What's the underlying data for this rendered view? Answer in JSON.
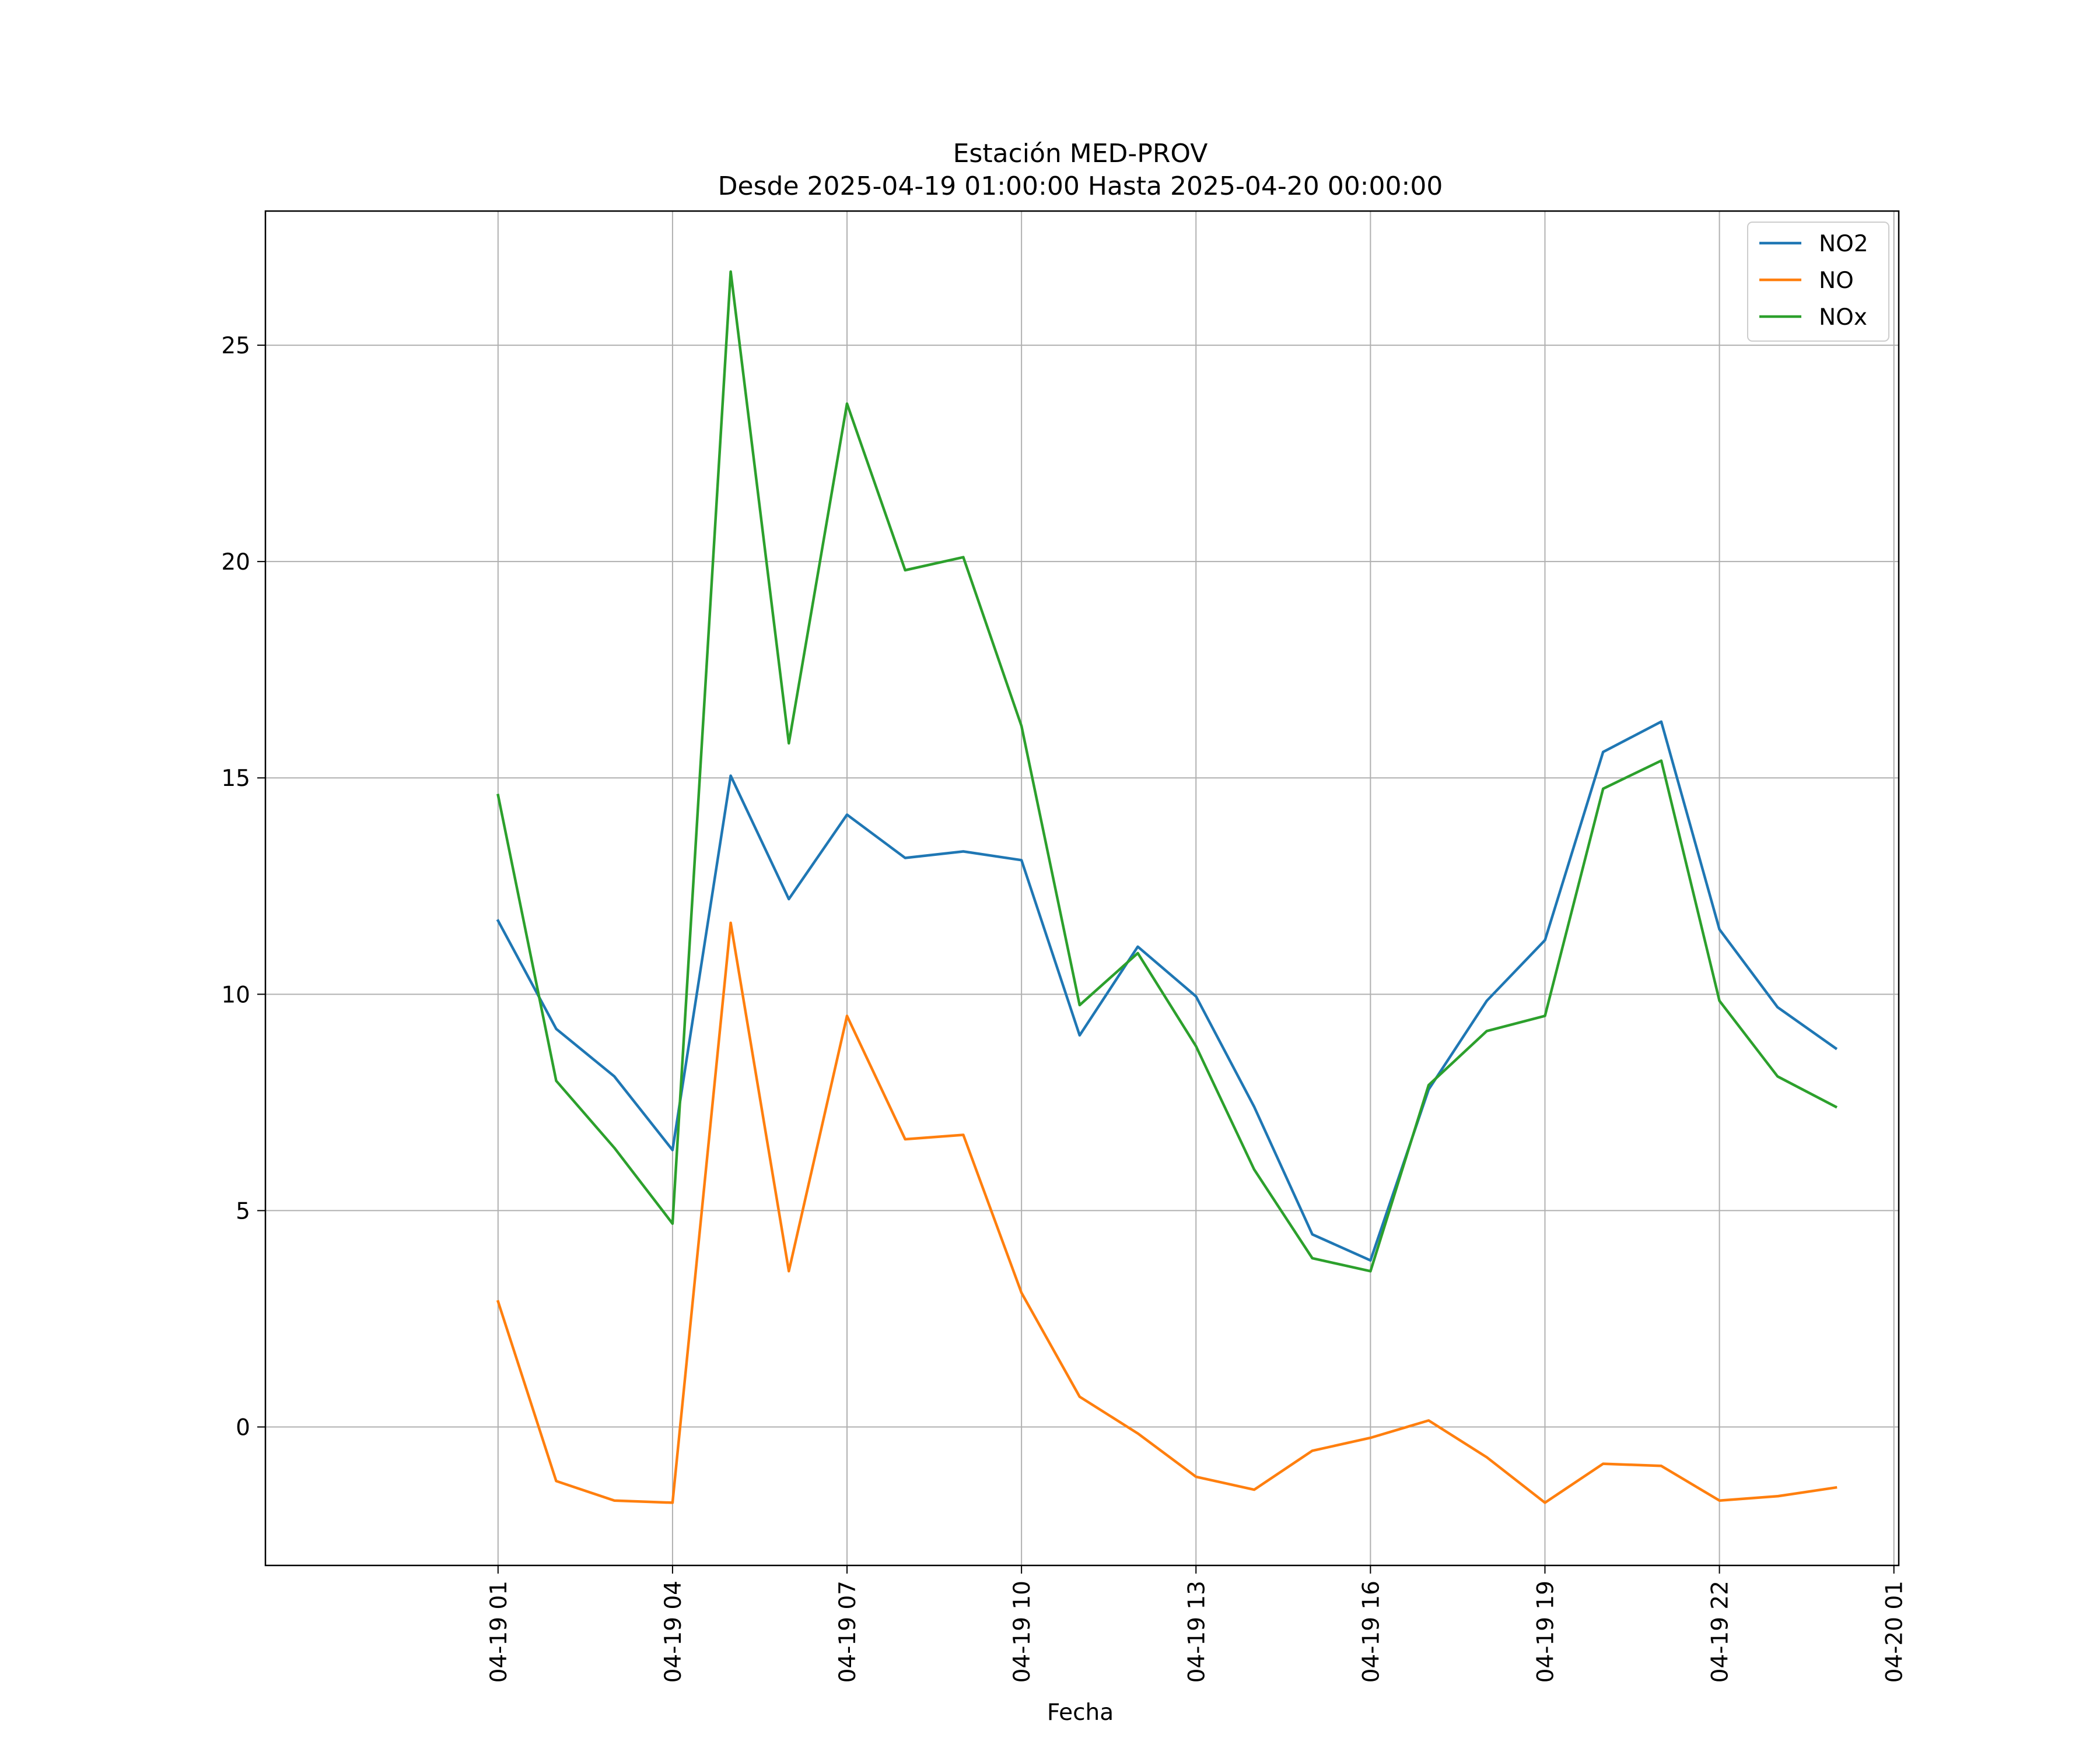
{
  "chart_data": {
    "type": "line",
    "title": "Estación MED-PROV",
    "subtitle": "Desde 2025-04-19 01:00:00 Hasta 2025-04-20 00:00:00",
    "xlabel": "Fecha",
    "ylabel": "",
    "x": [
      "2025-04-19 01:00",
      "2025-04-19 02:00",
      "2025-04-19 03:00",
      "2025-04-19 04:00",
      "2025-04-19 05:00",
      "2025-04-19 06:00",
      "2025-04-19 07:00",
      "2025-04-19 08:00",
      "2025-04-19 09:00",
      "2025-04-19 10:00",
      "2025-04-19 11:00",
      "2025-04-19 12:00",
      "2025-04-19 13:00",
      "2025-04-19 14:00",
      "2025-04-19 15:00",
      "2025-04-19 16:00",
      "2025-04-19 17:00",
      "2025-04-19 18:00",
      "2025-04-19 19:00",
      "2025-04-19 20:00",
      "2025-04-19 21:00",
      "2025-04-19 22:00",
      "2025-04-19 23:00",
      "2025-04-20 00:00"
    ],
    "x_ticks": [
      "04-19 01",
      "04-19 04",
      "04-19 07",
      "04-19 10",
      "04-19 13",
      "04-19 16",
      "04-19 19",
      "04-19 22",
      "04-20 01"
    ],
    "y_ticks": [
      0,
      5,
      10,
      15,
      20,
      25
    ],
    "xlim": [
      "2025-04-18 21:00",
      "2025-04-20 01:05"
    ],
    "ylim": [
      -3.2,
      28.1
    ],
    "grid": true,
    "legend_position": "top-right",
    "series": [
      {
        "name": "NO2",
        "color": "#1f77b4",
        "values": [
          11.7,
          9.2,
          8.1,
          6.4,
          15.05,
          12.2,
          14.15,
          13.15,
          13.3,
          13.1,
          9.05,
          11.1,
          9.95,
          7.4,
          4.45,
          3.85,
          7.8,
          9.85,
          11.25,
          15.6,
          16.3,
          11.5,
          9.7,
          8.75
        ]
      },
      {
        "name": "NO",
        "color": "#ff7f0e",
        "values": [
          2.9,
          -1.25,
          -1.7,
          -1.75,
          11.65,
          3.6,
          9.5,
          6.65,
          6.75,
          3.1,
          0.7,
          -0.15,
          -1.15,
          -1.45,
          -0.55,
          -0.25,
          0.15,
          -0.7,
          -1.75,
          -0.85,
          -0.9,
          -1.7,
          -1.6,
          -1.4
        ]
      },
      {
        "name": "NOx",
        "color": "#2ca02c",
        "values": [
          14.6,
          8.0,
          6.45,
          4.7,
          26.7,
          15.8,
          23.65,
          19.8,
          20.1,
          16.2,
          9.75,
          10.95,
          8.8,
          5.95,
          3.9,
          3.6,
          7.9,
          9.15,
          9.5,
          14.75,
          15.4,
          9.85,
          8.1,
          7.4
        ]
      }
    ]
  }
}
